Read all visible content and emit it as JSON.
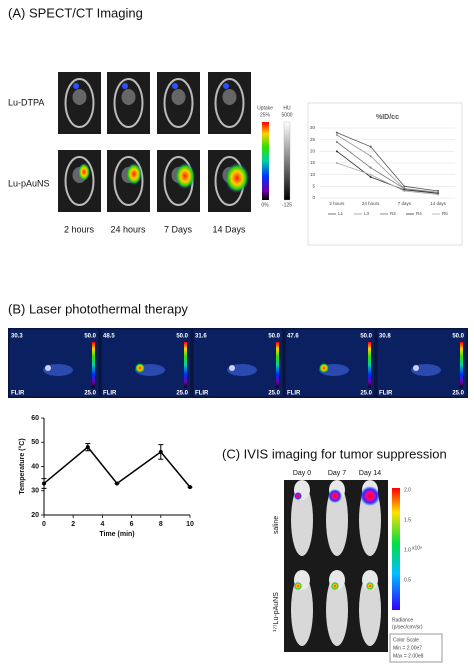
{
  "panel_a": {
    "title": "(A)   SPECT/CT Imaging",
    "rows": [
      "Lu-DTPA",
      "Lu-pAuNS"
    ],
    "times": [
      "2 hours",
      "24 hours",
      "7 Days",
      "14 Days"
    ],
    "uptake_label": "Uptake",
    "uptake_max": "25%",
    "uptake_min": "0%",
    "hu_label": "HU",
    "hu_max": "5000",
    "hu_min": "-125"
  },
  "panel_b": {
    "title": "(B) Laser photothermal therapy",
    "readings": [
      "30.3",
      "48.5",
      "31.6",
      "47.6",
      "30.8"
    ],
    "scale_max": "50.0",
    "scale_min": "25.0",
    "brand": "FLIR"
  },
  "panel_c": {
    "title": "(C) IVIS imaging for tumor suppression",
    "days": [
      "Day 0",
      "Day 7",
      "Day 14"
    ],
    "rows": [
      "saline",
      "¹⁷⁷Lu-pAuNS"
    ],
    "scale_ticks": [
      "2.0",
      "1.5",
      "1.0",
      "0.5"
    ],
    "scale_unit": "x10⁸",
    "radiance": "Radiance",
    "radiance_unit": "(p/sec/cm²/sr)",
    "color_scale": "Color Scale",
    "min": "Min = 2.00e7",
    "max": "Max = 2.00e8"
  },
  "chart_data": [
    {
      "type": "line",
      "title": "%ID/cc",
      "categories": [
        "2 hours",
        "24 hours",
        "7 days",
        "14 days"
      ],
      "ylim": [
        0,
        30
      ],
      "yticks": [
        0,
        5,
        10,
        15,
        20,
        25,
        30
      ],
      "grid": true,
      "series": [
        {
          "name": "L1",
          "color": "#555555",
          "values": [
            28,
            22,
            5,
            3
          ]
        },
        {
          "name": "L3",
          "color": "#999999",
          "values": [
            27,
            18,
            4,
            2.5
          ]
        },
        {
          "name": "R2",
          "color": "#777777",
          "values": [
            24,
            13,
            4,
            2
          ]
        },
        {
          "name": "R4",
          "color": "#333333",
          "values": [
            20,
            9,
            3.5,
            2
          ]
        },
        {
          "name": "R5",
          "color": "#aaaaaa",
          "values": [
            15,
            10,
            3,
            1.5
          ]
        }
      ]
    },
    {
      "type": "line",
      "xlabel": "Time (min)",
      "ylabel": "Temperature (°C)",
      "x": [
        0,
        3,
        5,
        8,
        10
      ],
      "xlim": [
        0,
        10
      ],
      "xticks": [
        0,
        2,
        4,
        6,
        8,
        10
      ],
      "ylim": [
        20,
        60
      ],
      "yticks": [
        20,
        30,
        40,
        50,
        60
      ],
      "series": [
        {
          "color": "#000000",
          "values": [
            33,
            48,
            33,
            46,
            31.5
          ],
          "errors": [
            2,
            1.5,
            0,
            3,
            0
          ]
        }
      ]
    }
  ]
}
